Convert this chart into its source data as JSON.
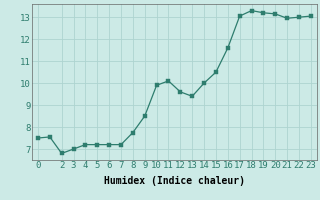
{
  "x": [
    0,
    1,
    2,
    3,
    4,
    5,
    6,
    7,
    8,
    9,
    10,
    11,
    12,
    13,
    14,
    15,
    16,
    17,
    18,
    19,
    20,
    21,
    22,
    23
  ],
  "y": [
    7.5,
    7.55,
    6.8,
    7.0,
    7.2,
    7.2,
    7.2,
    7.2,
    7.75,
    8.5,
    9.9,
    10.1,
    9.6,
    9.4,
    10.0,
    10.5,
    11.6,
    13.05,
    13.3,
    13.2,
    13.15,
    12.95,
    13.0,
    13.05
  ],
  "line_color": "#2e7d6e",
  "marker_color": "#2e7d6e",
  "bg_color": "#cceae6",
  "grid_color": "#aed4d0",
  "xlabel": "Humidex (Indice chaleur)",
  "xlabel_fontsize": 7,
  "tick_fontsize": 6.5,
  "ylim": [
    6.5,
    13.6
  ],
  "xlim": [
    -0.5,
    23.5
  ],
  "yticks": [
    7,
    8,
    9,
    10,
    11,
    12,
    13
  ],
  "xticks": [
    0,
    2,
    3,
    4,
    5,
    6,
    7,
    8,
    9,
    10,
    11,
    12,
    13,
    14,
    15,
    16,
    17,
    18,
    19,
    20,
    21,
    22,
    23
  ]
}
